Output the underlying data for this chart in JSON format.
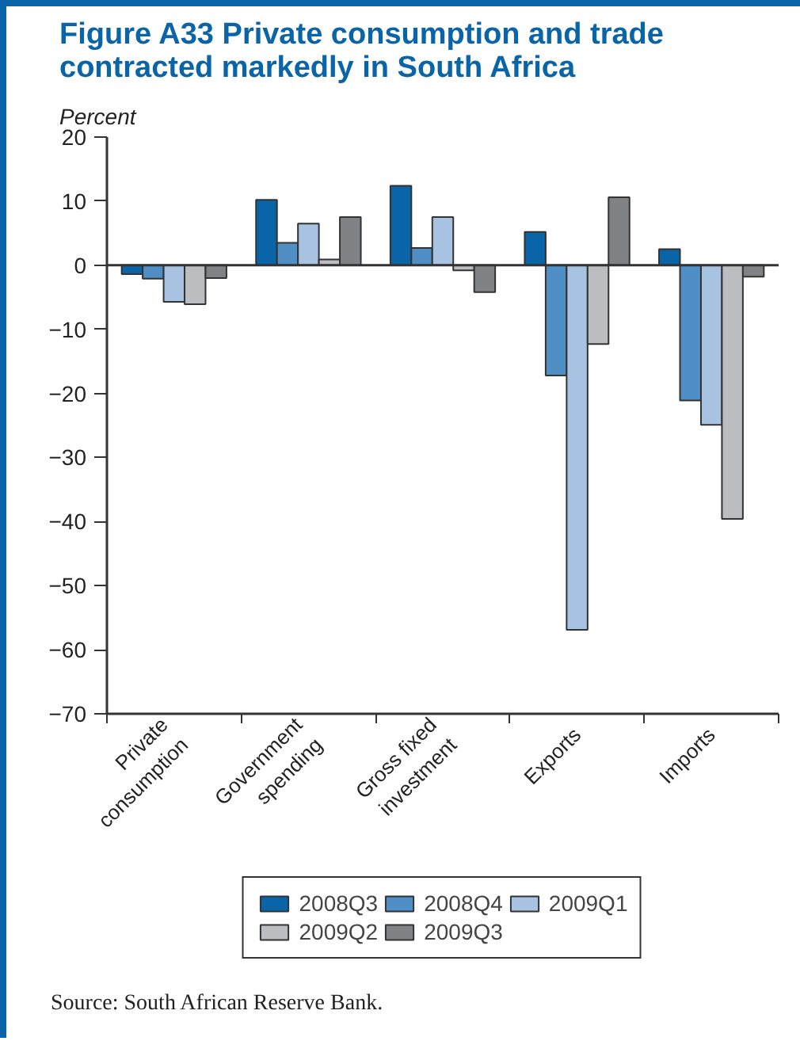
{
  "chart_data": {
    "type": "bar",
    "title": "Figure A33  Private consumption and trade\ncontracted markedly in South Africa",
    "ylabel": "Percent",
    "categories": [
      "Private\nconsumption",
      "Government\nspending",
      "Gross fixed\ninvestment",
      "Exports",
      "Imports"
    ],
    "series": [
      {
        "name": "2008Q3",
        "color": "#0a64a8",
        "values": [
          -1.4,
          10.2,
          12.4,
          5.2,
          2.5
        ]
      },
      {
        "name": "2008Q4",
        "color": "#4f8fc6",
        "values": [
          -2.1,
          3.5,
          2.7,
          -17.2,
          -21.1
        ]
      },
      {
        "name": "2009Q1",
        "color": "#a8c2e2",
        "values": [
          -5.7,
          6.5,
          7.5,
          -56.9,
          -24.9
        ]
      },
      {
        "name": "2009Q2",
        "color": "#bcbdc1",
        "values": [
          -6.1,
          0.9,
          -0.8,
          -12.3,
          -39.6
        ]
      },
      {
        "name": "2009Q3",
        "color": "#808285",
        "values": [
          -2.0,
          7.5,
          -4.2,
          10.6,
          -1.8
        ]
      }
    ],
    "ylim": [
      -70,
      20
    ],
    "yticks": [
      20,
      10,
      0,
      {
        "value": -10,
        "label": "−10"
      },
      {
        "value": -20,
        "label": "−20"
      },
      {
        "value": -30,
        "label": "−30"
      },
      {
        "value": -40,
        "label": "−40"
      },
      {
        "value": -50,
        "label": "−50"
      },
      {
        "value": -60,
        "label": "−60"
      },
      {
        "value": -70,
        "label": "−70"
      }
    ],
    "ref_lines": [
      {
        "axis": "y",
        "value": 0
      }
    ],
    "grid": false,
    "legend": "bottom",
    "annotations": [
      "Source: South African Reserve Bank."
    ]
  }
}
